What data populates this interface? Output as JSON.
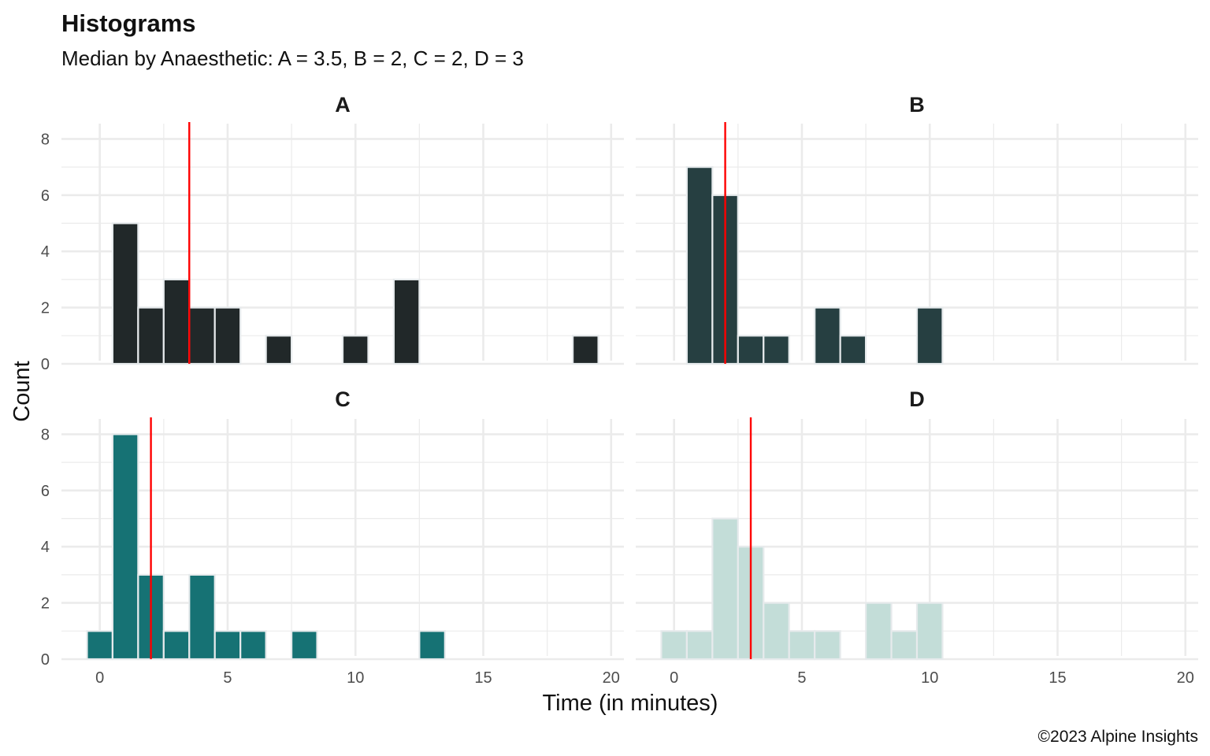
{
  "chart_data": {
    "type": "bar",
    "title": "Histograms",
    "subtitle": "Median by Anaesthetic:  A  =  3.5, B  =  2, C  =  2, D  =  3",
    "xlabel": "Time (in minutes)",
    "ylabel": "Count",
    "caption": "©2023 Alpine Insights",
    "xlim": [
      -1.5,
      20.5
    ],
    "ylim": [
      0,
      8.6
    ],
    "x_ticks": [
      0,
      5,
      10,
      15,
      20
    ],
    "y_ticks": [
      0,
      2,
      4,
      6,
      8
    ],
    "grid": true,
    "median_line_color": "#ff0000",
    "bar_outline_color": "#e6eaec",
    "grid_color": "#ebebeb",
    "panels": [
      {
        "name": "A",
        "color": "#212829",
        "median": 3.5,
        "bins": [
          {
            "x": 1,
            "count": 5
          },
          {
            "x": 2,
            "count": 2
          },
          {
            "x": 3,
            "count": 3
          },
          {
            "x": 4,
            "count": 2
          },
          {
            "x": 5,
            "count": 2
          },
          {
            "x": 7,
            "count": 1
          },
          {
            "x": 10,
            "count": 1
          },
          {
            "x": 12,
            "count": 3
          },
          {
            "x": 19,
            "count": 1
          }
        ]
      },
      {
        "name": "B",
        "color": "#263f41",
        "median": 2,
        "bins": [
          {
            "x": 1,
            "count": 7
          },
          {
            "x": 2,
            "count": 6
          },
          {
            "x": 3,
            "count": 1
          },
          {
            "x": 4,
            "count": 1
          },
          {
            "x": 6,
            "count": 2
          },
          {
            "x": 7,
            "count": 1
          },
          {
            "x": 10,
            "count": 2
          }
        ]
      },
      {
        "name": "C",
        "color": "#167274",
        "median": 2,
        "bins": [
          {
            "x": 0,
            "count": 1
          },
          {
            "x": 1,
            "count": 8
          },
          {
            "x": 2,
            "count": 3
          },
          {
            "x": 3,
            "count": 1
          },
          {
            "x": 4,
            "count": 3
          },
          {
            "x": 5,
            "count": 1
          },
          {
            "x": 6,
            "count": 1
          },
          {
            "x": 8,
            "count": 1
          },
          {
            "x": 13,
            "count": 1
          }
        ]
      },
      {
        "name": "D",
        "color": "#c3ddd8",
        "median": 3,
        "bins": [
          {
            "x": 0,
            "count": 1
          },
          {
            "x": 1,
            "count": 1
          },
          {
            "x": 2,
            "count": 5
          },
          {
            "x": 3,
            "count": 4
          },
          {
            "x": 4,
            "count": 2
          },
          {
            "x": 5,
            "count": 1
          },
          {
            "x": 6,
            "count": 1
          },
          {
            "x": 8,
            "count": 2
          },
          {
            "x": 9,
            "count": 1
          },
          {
            "x": 10,
            "count": 2
          }
        ]
      }
    ]
  }
}
